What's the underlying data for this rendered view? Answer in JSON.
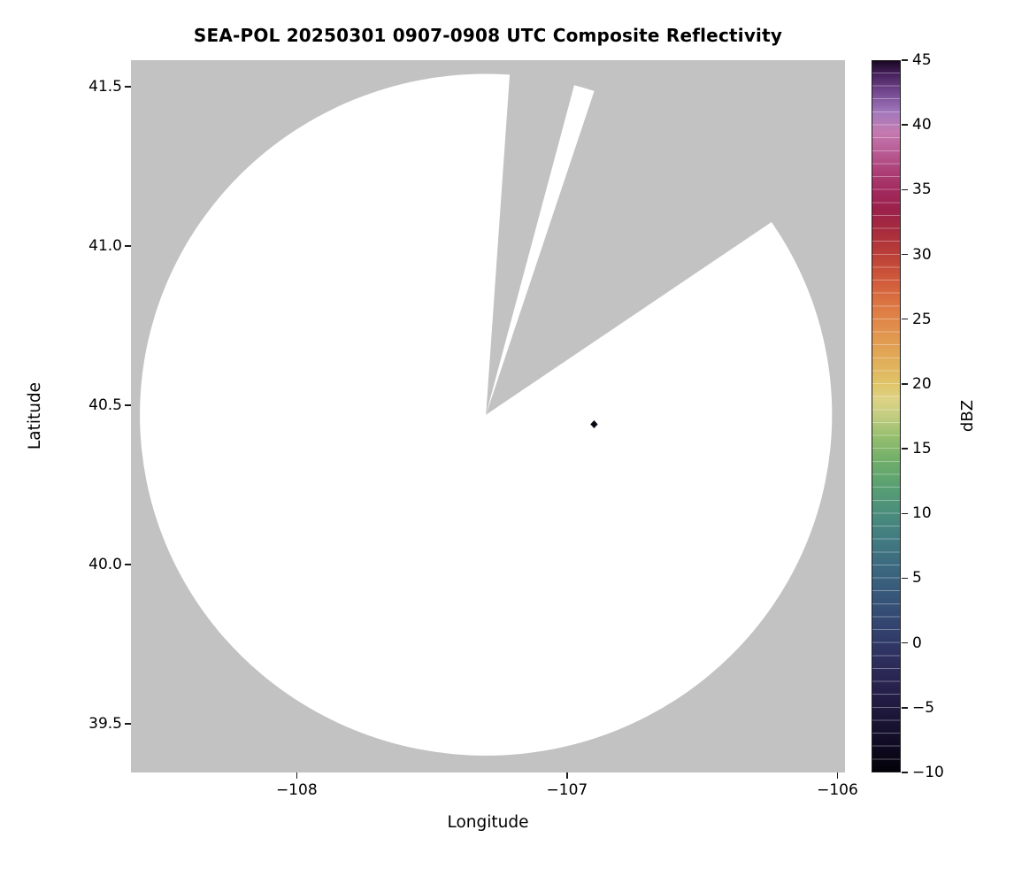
{
  "chart_data": {
    "type": "heatmap",
    "title": "SEA-POL 20250301 0907-0908 UTC Composite Reflectivity",
    "xlabel": "Longitude",
    "ylabel": "Latitude",
    "units": "dBZ",
    "xlim": [
      -108.613,
      -105.972
    ],
    "ylim": [
      39.347,
      41.583
    ],
    "grid": false,
    "xticks": {
      "values": [
        -108,
        -107,
        -106
      ],
      "labels": [
        "−108",
        "−107",
        "−106"
      ]
    },
    "yticks": {
      "values": [
        39.5,
        40.0,
        40.5,
        41.0,
        41.5
      ],
      "labels": [
        "39.5",
        "40.0",
        "40.5",
        "41.0",
        "41.5"
      ]
    },
    "radar": {
      "center_lon": -107.3,
      "center_lat": 40.47,
      "coverage_radius_deg_lon": 1.28,
      "coverage_radius_deg_lat": 1.07,
      "coverage_fill": "#ffffff",
      "no_data_fill": "#c2c2c2",
      "missing_sectors_azimuth_deg": [
        [
          4,
          15
        ],
        [
          18.5,
          56
        ]
      ]
    },
    "echoes": [
      {
        "lon": -106.9,
        "lat": 40.44,
        "dbz": 45,
        "color": "#0a0a12"
      }
    ],
    "colorbar": {
      "label": "dBZ",
      "min": -10,
      "max": 45,
      "position": "right",
      "tick_values": [
        45,
        40,
        35,
        30,
        25,
        20,
        15,
        10,
        5,
        0,
        -5,
        -10
      ],
      "tick_labels": [
        "45",
        "40",
        "35",
        "30",
        "25",
        "20",
        "15",
        "10",
        "5",
        "0",
        "−5",
        "−10"
      ],
      "stops": [
        {
          "v": -10,
          "c": "#020108"
        },
        {
          "v": -8,
          "c": "#100b22"
        },
        {
          "v": -6,
          "c": "#1b1536"
        },
        {
          "v": -4,
          "c": "#251f49"
        },
        {
          "v": -2,
          "c": "#2c2a59"
        },
        {
          "v": 0,
          "c": "#303968"
        },
        {
          "v": 2,
          "c": "#344a73"
        },
        {
          "v": 4,
          "c": "#385a7b"
        },
        {
          "v": 6,
          "c": "#3c6a80"
        },
        {
          "v": 8,
          "c": "#427b81"
        },
        {
          "v": 10,
          "c": "#4a8d7c"
        },
        {
          "v": 12,
          "c": "#589f73"
        },
        {
          "v": 14,
          "c": "#6fae69"
        },
        {
          "v": 16,
          "c": "#97bf6e"
        },
        {
          "v": 17.5,
          "c": "#c2cd80"
        },
        {
          "v": 18.8,
          "c": "#ddd285"
        },
        {
          "v": 20,
          "c": "#e0c468"
        },
        {
          "v": 22,
          "c": "#e1ab58"
        },
        {
          "v": 24,
          "c": "#e1934e"
        },
        {
          "v": 26,
          "c": "#dd7843"
        },
        {
          "v": 28,
          "c": "#d15b3b"
        },
        {
          "v": 30,
          "c": "#bb3f37"
        },
        {
          "v": 32,
          "c": "#a52a3e"
        },
        {
          "v": 33.5,
          "c": "#9c214b"
        },
        {
          "v": 35,
          "c": "#a22a5e"
        },
        {
          "v": 36.5,
          "c": "#ad4178"
        },
        {
          "v": 38,
          "c": "#b95c95"
        },
        {
          "v": 39.5,
          "c": "#c47ab0"
        },
        {
          "v": 41,
          "c": "#a379bd"
        },
        {
          "v": 42.5,
          "c": "#774b92"
        },
        {
          "v": 44,
          "c": "#46205c"
        },
        {
          "v": 45,
          "c": "#190723"
        }
      ]
    }
  }
}
